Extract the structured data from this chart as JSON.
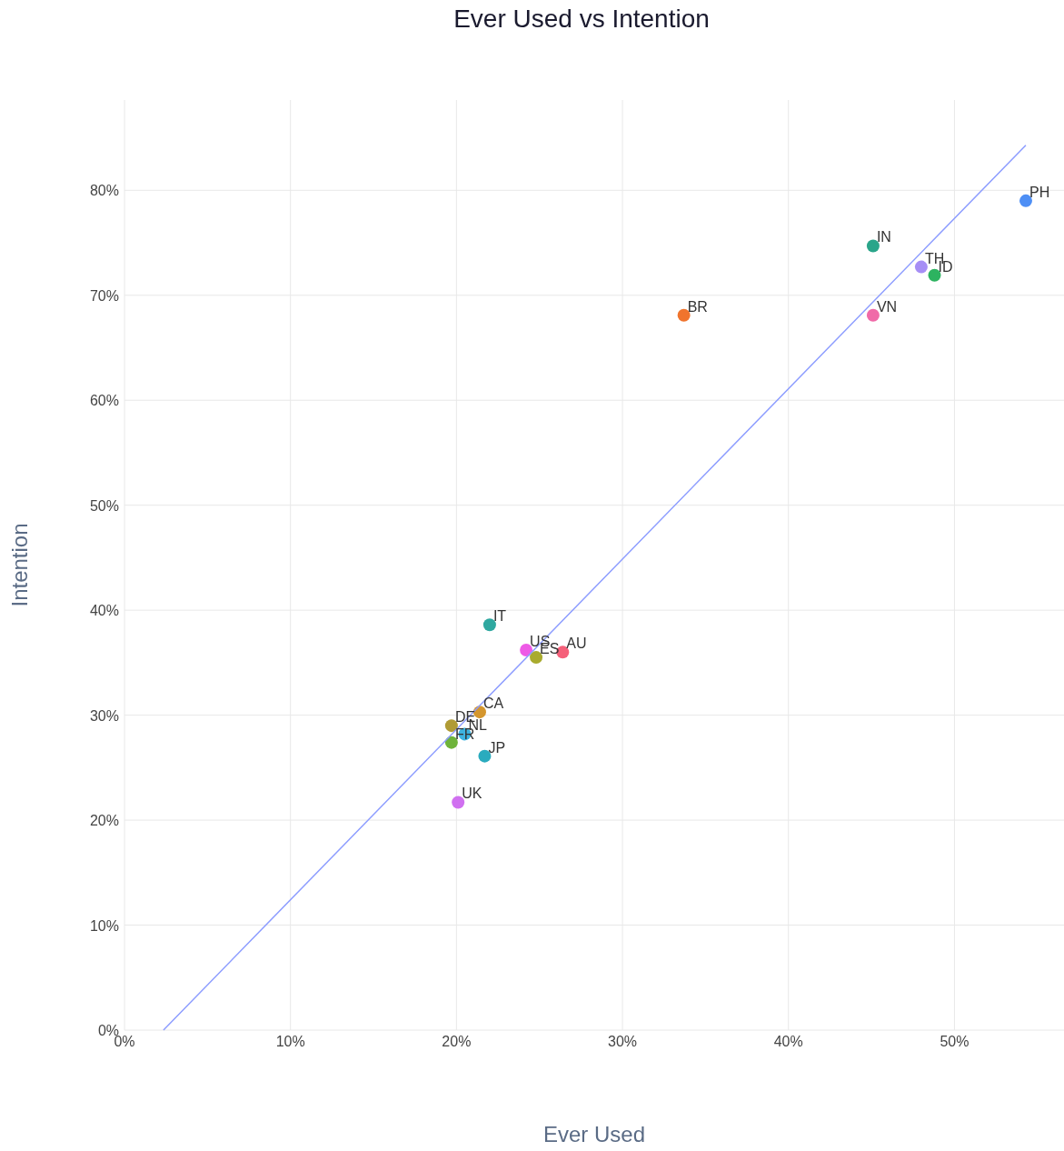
{
  "chart_data": {
    "type": "scatter",
    "title": "Ever Used vs Intention",
    "xlabel": "Ever Used",
    "ylabel": "Intention",
    "xlim": [
      0,
      56.6
    ],
    "ylim": [
      0,
      88.6
    ],
    "xticks": [
      {
        "value": 0,
        "label": "0%"
      },
      {
        "value": 10,
        "label": "10%"
      },
      {
        "value": 20,
        "label": "20%"
      },
      {
        "value": 30,
        "label": "30%"
      },
      {
        "value": 40,
        "label": "40%"
      },
      {
        "value": 50,
        "label": "50%"
      }
    ],
    "yticks": [
      {
        "value": 0,
        "label": "0%"
      },
      {
        "value": 10,
        "label": "10%"
      },
      {
        "value": 20,
        "label": "20%"
      },
      {
        "value": 30,
        "label": "30%"
      },
      {
        "value": 40,
        "label": "40%"
      },
      {
        "value": 50,
        "label": "50%"
      },
      {
        "value": 60,
        "label": "60%"
      },
      {
        "value": 70,
        "label": "70%"
      },
      {
        "value": 80,
        "label": "80%"
      }
    ],
    "grid": true,
    "annotations": [
      {
        "text": "PH",
        "x": 54.3,
        "y": 79.0
      },
      {
        "text": "IN",
        "x": 45.1,
        "y": 74.7
      },
      {
        "text": "TH",
        "x": 48.0,
        "y": 72.7
      },
      {
        "text": "ID",
        "x": 48.8,
        "y": 71.9
      },
      {
        "text": "VN",
        "x": 45.1,
        "y": 68.1
      },
      {
        "text": "BR",
        "x": 33.7,
        "y": 68.1
      },
      {
        "text": "IT",
        "x": 22.0,
        "y": 38.6
      },
      {
        "text": "US",
        "x": 24.2,
        "y": 36.2
      },
      {
        "text": "ES",
        "x": 24.8,
        "y": 35.5
      },
      {
        "text": "AU",
        "x": 26.4,
        "y": 36.0
      },
      {
        "text": "CA",
        "x": 21.4,
        "y": 30.3
      },
      {
        "text": "DE",
        "x": 19.7,
        "y": 29.0
      },
      {
        "text": "NL",
        "x": 20.5,
        "y": 28.2
      },
      {
        "text": "FR",
        "x": 19.7,
        "y": 27.4
      },
      {
        "text": "JP",
        "x": 21.7,
        "y": 26.1
      },
      {
        "text": "UK",
        "x": 20.1,
        "y": 21.7
      }
    ],
    "series": [
      {
        "marker": "circle",
        "x": [
          54.3,
          45.1,
          48.0,
          48.8,
          45.1,
          33.7,
          22.0,
          24.2,
          24.8,
          26.4,
          21.4,
          19.7,
          20.5,
          19.7,
          21.7,
          20.1
        ],
        "values": [
          79.0,
          74.7,
          72.7,
          71.9,
          68.1,
          68.1,
          38.6,
          36.2,
          35.5,
          36.0,
          30.3,
          29.0,
          28.2,
          27.4,
          26.1,
          21.7
        ],
        "colors": [
          "#4e8ff5",
          "#2aa58a",
          "#a68ef5",
          "#2db360",
          "#f06aa8",
          "#f0742d",
          "#2fa8a0",
          "#ee5ae6",
          "#a9ab2e",
          "#f5607a",
          "#d4962e",
          "#b09b35",
          "#3db3e0",
          "#6eb33a",
          "#2aabbe",
          "#d070f0"
        ]
      },
      {
        "type": "line",
        "color": "#8c9cff",
        "x": [
          2.35,
          54.3
        ],
        "values": [
          0,
          84.3
        ]
      }
    ]
  }
}
